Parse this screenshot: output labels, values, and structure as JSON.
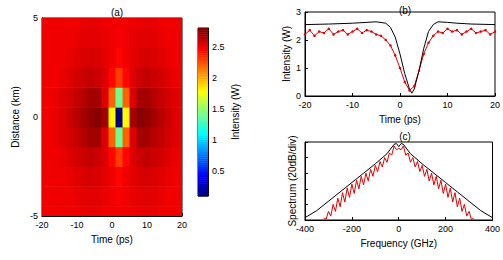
{
  "chart_data": [
    {
      "type": "heatmap",
      "title": "(a)",
      "xlabel": "Time (ps)",
      "ylabel": "Distance (km)",
      "xlim": [
        -20,
        20
      ],
      "xticks": [
        -20,
        -10,
        0,
        10,
        20
      ],
      "ylim": [
        -5,
        5
      ],
      "yticks": [
        -5,
        0,
        5
      ],
      "grid": false,
      "x": [
        -20,
        -18,
        -16,
        -14,
        -12,
        -10,
        -8,
        -6,
        -4,
        -2,
        0,
        2,
        4,
        6,
        8,
        10,
        12,
        14,
        16,
        18,
        20
      ],
      "y": [
        -5,
        -4,
        -3,
        -2,
        -1,
        0,
        1,
        2,
        3,
        4,
        5
      ],
      "z": [
        [
          2.5,
          2.5,
          2.5,
          2.5,
          2.5,
          2.5,
          2.52,
          2.52,
          2.52,
          2.5,
          2.5,
          2.5,
          2.5,
          2.5,
          2.52,
          2.52,
          2.52,
          2.5,
          2.5,
          2.5,
          2.5
        ],
        [
          2.5,
          2.5,
          2.5,
          2.5,
          2.5,
          2.52,
          2.53,
          2.54,
          2.53,
          2.52,
          2.5,
          2.48,
          2.5,
          2.52,
          2.53,
          2.54,
          2.53,
          2.52,
          2.5,
          2.5,
          2.5
        ],
        [
          2.5,
          2.5,
          2.5,
          2.5,
          2.52,
          2.54,
          2.56,
          2.57,
          2.56,
          2.53,
          2.5,
          2.45,
          2.5,
          2.53,
          2.56,
          2.57,
          2.56,
          2.54,
          2.52,
          2.5,
          2.5
        ],
        [
          2.5,
          2.5,
          2.5,
          2.52,
          2.55,
          2.58,
          2.6,
          2.62,
          2.6,
          2.55,
          2.45,
          2.3,
          2.45,
          2.55,
          2.6,
          2.62,
          2.6,
          2.58,
          2.55,
          2.52,
          2.5
        ],
        [
          2.5,
          2.5,
          2.52,
          2.55,
          2.58,
          2.62,
          2.66,
          2.7,
          2.7,
          2.55,
          2.2,
          1.4,
          2.2,
          2.55,
          2.7,
          2.7,
          2.66,
          2.62,
          2.58,
          2.55,
          2.52
        ],
        [
          2.5,
          2.5,
          2.52,
          2.55,
          2.6,
          2.65,
          2.7,
          2.75,
          2.78,
          2.7,
          1.8,
          0.1,
          1.8,
          2.7,
          2.78,
          2.75,
          2.7,
          2.65,
          2.6,
          2.55,
          2.52
        ],
        [
          2.5,
          2.5,
          2.52,
          2.55,
          2.58,
          2.62,
          2.66,
          2.7,
          2.7,
          2.55,
          2.2,
          1.4,
          2.2,
          2.55,
          2.7,
          2.7,
          2.66,
          2.62,
          2.58,
          2.55,
          2.52
        ],
        [
          2.5,
          2.5,
          2.5,
          2.52,
          2.55,
          2.58,
          2.6,
          2.62,
          2.6,
          2.55,
          2.45,
          2.3,
          2.45,
          2.55,
          2.6,
          2.62,
          2.6,
          2.58,
          2.55,
          2.52,
          2.5
        ],
        [
          2.5,
          2.5,
          2.5,
          2.5,
          2.52,
          2.54,
          2.56,
          2.57,
          2.56,
          2.53,
          2.5,
          2.45,
          2.5,
          2.53,
          2.56,
          2.57,
          2.56,
          2.54,
          2.52,
          2.5,
          2.5
        ],
        [
          2.5,
          2.5,
          2.5,
          2.5,
          2.5,
          2.52,
          2.53,
          2.54,
          2.53,
          2.52,
          2.5,
          2.48,
          2.5,
          2.52,
          2.53,
          2.54,
          2.53,
          2.52,
          2.5,
          2.5,
          2.5
        ],
        [
          2.5,
          2.5,
          2.5,
          2.5,
          2.5,
          2.5,
          2.52,
          2.52,
          2.52,
          2.5,
          2.5,
          2.5,
          2.5,
          2.5,
          2.52,
          2.52,
          2.52,
          2.5,
          2.5,
          2.5,
          2.5
        ]
      ],
      "colorbar": {
        "label": "Intensity (W)",
        "range": [
          0.1,
          2.8
        ],
        "ticks": [
          0.5,
          1,
          1.5,
          2,
          2.5
        ]
      }
    },
    {
      "type": "line",
      "title": "(b)",
      "xlabel": "Time (ps)",
      "ylabel": "Intensity (W)",
      "xlim": [
        -20,
        20
      ],
      "xticks": [
        -20,
        -10,
        0,
        10,
        20
      ],
      "ylim": [
        0,
        3
      ],
      "yticks": [
        0,
        1,
        2,
        3
      ],
      "grid": false,
      "series": [
        {
          "color": "#e00000",
          "marker": "circle",
          "line_style": "solid",
          "x": [
            -20,
            -19,
            -18,
            -17,
            -16,
            -15,
            -14,
            -13,
            -12,
            -11,
            -10,
            -9,
            -8,
            -7,
            -6,
            -5,
            -4,
            -3,
            -2,
            -1,
            0,
            1,
            2,
            3,
            4,
            5,
            6,
            7,
            8,
            9,
            10,
            11,
            12,
            13,
            14,
            15,
            16,
            17,
            18,
            19,
            20
          ],
          "values": [
            2.2,
            2.35,
            2.15,
            2.3,
            2.25,
            2.4,
            2.2,
            2.3,
            2.35,
            2.2,
            2.3,
            2.4,
            2.25,
            2.35,
            2.3,
            2.2,
            2.15,
            2.0,
            1.8,
            1.45,
            1.0,
            0.5,
            0.2,
            0.35,
            0.9,
            1.5,
            1.9,
            2.15,
            2.3,
            2.25,
            2.4,
            2.3,
            2.35,
            2.2,
            2.3,
            2.4,
            2.25,
            2.3,
            2.35,
            2.2,
            2.3
          ]
        },
        {
          "color": "#000000",
          "line_style": "solid",
          "x": [
            -20,
            -15,
            -10,
            -7,
            -5,
            -3,
            -2,
            -1,
            0,
            1,
            2,
            2.5,
            3,
            4,
            5,
            6,
            7,
            8,
            10,
            12,
            15,
            20
          ],
          "values": [
            2.55,
            2.57,
            2.6,
            2.63,
            2.65,
            2.6,
            2.45,
            2.1,
            1.5,
            0.8,
            0.25,
            0.1,
            0.25,
            0.9,
            1.7,
            2.3,
            2.55,
            2.65,
            2.63,
            2.6,
            2.57,
            2.55
          ]
        }
      ]
    },
    {
      "type": "line",
      "title": "(c)",
      "xlabel": "Frequency (GHz)",
      "ylabel": "Spectrum (20dB/div)",
      "xlim": [
        -400,
        400
      ],
      "xticks": [
        -400,
        -200,
        0,
        200,
        400
      ],
      "ylim": [
        -100,
        0
      ],
      "yticks": [
        -100,
        -80,
        -60,
        -40,
        -20,
        0
      ],
      "tick_labels": "x",
      "grid": false,
      "series": [
        {
          "color": "#e00000",
          "line_style": "solid",
          "x": [
            -320,
            -310,
            -300,
            -290,
            -280,
            -270,
            -260,
            -250,
            -240,
            -230,
            -220,
            -210,
            -200,
            -190,
            -180,
            -170,
            -160,
            -150,
            -140,
            -130,
            -120,
            -110,
            -100,
            -90,
            -80,
            -70,
            -60,
            -50,
            -40,
            -30,
            -20,
            -10,
            0,
            10,
            20,
            30,
            40,
            50,
            60,
            70,
            80,
            90,
            100,
            110,
            120,
            130,
            140,
            150,
            160,
            170,
            180,
            190,
            200,
            210,
            220,
            230,
            240,
            250,
            260,
            270,
            280,
            290,
            300,
            310,
            320
          ],
          "values": [
            -98,
            -99,
            -89,
            -95,
            -80,
            -89,
            -72,
            -83,
            -65,
            -77,
            -59,
            -71,
            -54,
            -66,
            -49,
            -60,
            -44,
            -55,
            -40,
            -50,
            -35,
            -44,
            -30,
            -38,
            -25,
            -32,
            -20,
            -26,
            -14,
            -17,
            -5,
            -10,
            -8,
            -10,
            -5,
            -17,
            -14,
            -26,
            -20,
            -32,
            -25,
            -38,
            -30,
            -44,
            -35,
            -50,
            -40,
            -55,
            -44,
            -60,
            -49,
            -66,
            -54,
            -71,
            -59,
            -77,
            -65,
            -83,
            -72,
            -89,
            -80,
            -95,
            -89,
            -99,
            -98
          ]
        },
        {
          "color": "#000000",
          "line_style": "solid",
          "x": [
            -400,
            -350,
            -300,
            -250,
            -200,
            -150,
            -100,
            -50,
            -20,
            -10,
            0,
            10,
            20,
            50,
            100,
            150,
            200,
            250,
            300,
            350,
            400
          ],
          "values": [
            -97,
            -88,
            -76,
            -64,
            -52,
            -40,
            -28,
            -15,
            -3,
            -2,
            -6,
            -2,
            -3,
            -15,
            -28,
            -40,
            -52,
            -64,
            -76,
            -88,
            -97
          ]
        }
      ]
    }
  ]
}
